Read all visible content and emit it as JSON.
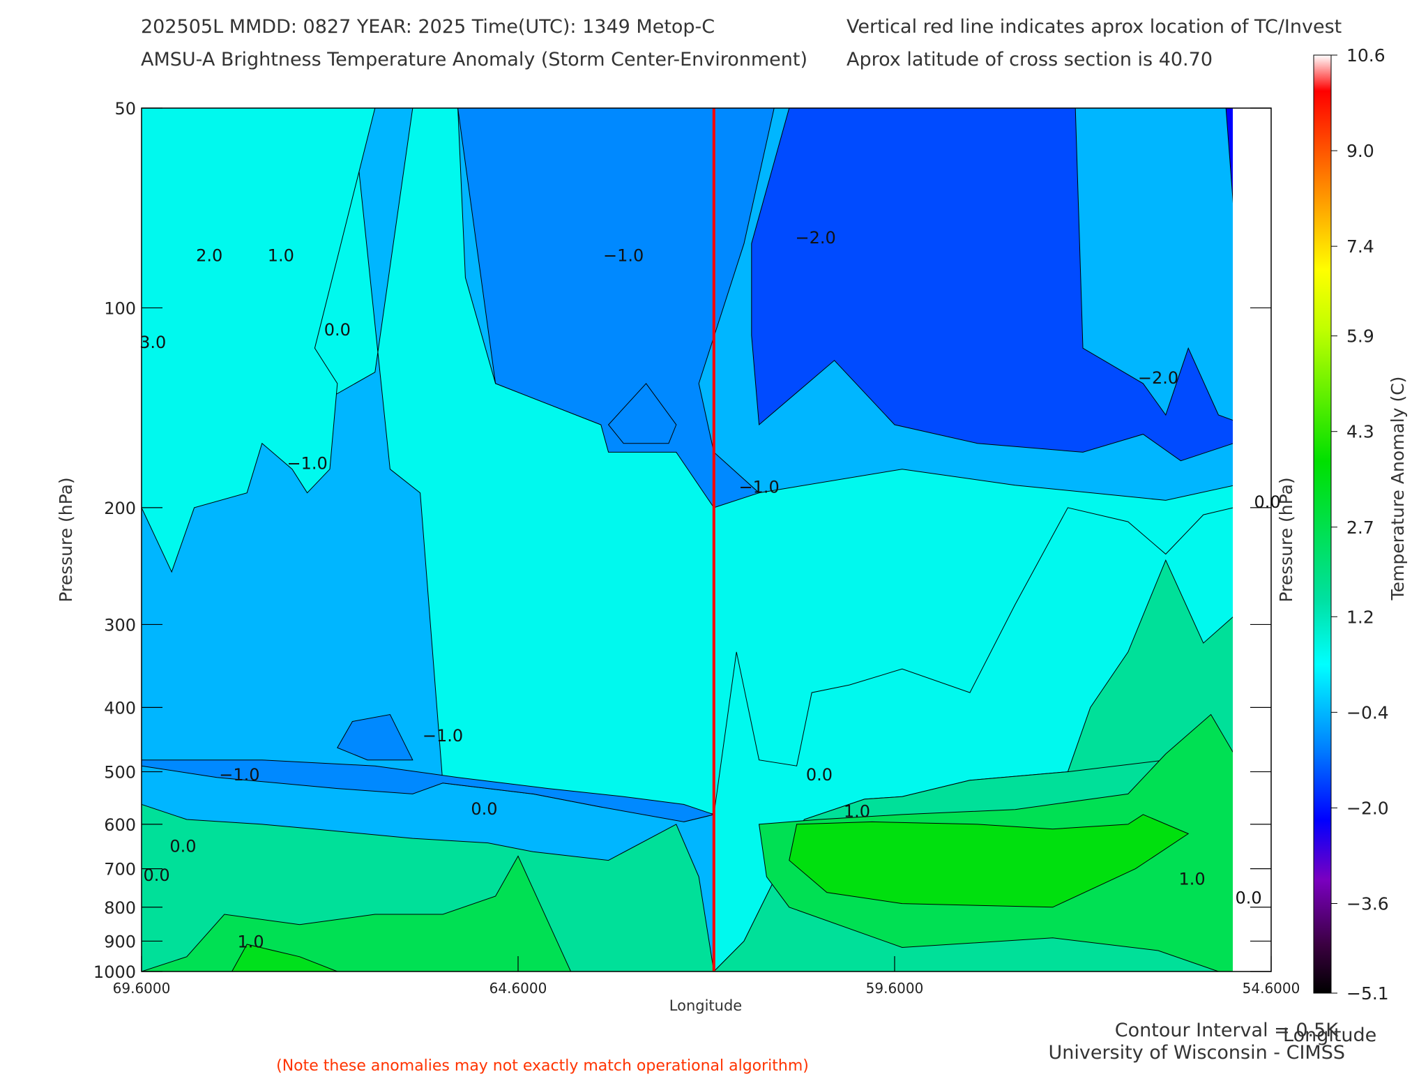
{
  "header": {
    "line1_left": "202505L  MMDD: 0827 YEAR: 2025 Time(UTC): 1349 Metop-C",
    "line2_left": "AMSU-A Brightness Temperature Anomaly (Storm Center-Environment)",
    "line1_right": "Vertical red line indicates aprox location of TC/Invest",
    "line2_right": "Aprox latitude of cross section is 40.70"
  },
  "footer": {
    "contour_interval": "Contour Interval = 0.5K",
    "institution": "University of Wisconsin - CIMSS",
    "note": "(Note these anomalies may not exactly match operational algorithm)",
    "extra_longitude": "Longitude"
  },
  "chart_data": {
    "type": "heatmap",
    "xlabel": "Longitude",
    "ylabel_left": "Pressure (hPa)",
    "ylabel_right": "Pressure (hPa)",
    "x_reversed": true,
    "xlim": [
      69.6,
      54.6
    ],
    "x_ticks": [
      "69.6000",
      "64.6000",
      "59.6000",
      "54.6000"
    ],
    "x_tick_values": [
      69.6,
      64.6,
      59.6,
      54.6
    ],
    "y_scale": "log",
    "ylim": [
      1000,
      50
    ],
    "y_ticks": [
      50,
      100,
      200,
      300,
      400,
      500,
      600,
      700,
      800,
      900,
      1000
    ],
    "storm_longitude": 62.0,
    "storm_line_color": "#ff0000",
    "colorbar": {
      "label": "Temperature Anomaly (C)",
      "min": -5.1,
      "max": 10.6,
      "ticks": [
        "10.6",
        "9.0",
        "7.4",
        "5.9",
        "4.3",
        "2.7",
        "1.2",
        "−0.4",
        "−2.0",
        "−3.6",
        "−5.1"
      ],
      "tick_values": [
        10.6,
        9.0,
        7.4,
        5.9,
        4.3,
        2.7,
        1.2,
        -0.4,
        -2.0,
        -3.6,
        -5.1
      ],
      "stops": [
        {
          "v": -5.1,
          "color": "#000000"
        },
        {
          "v": -4.3,
          "color": "#3a0040"
        },
        {
          "v": -3.2,
          "color": "#7a00c0"
        },
        {
          "v": -2.2,
          "color": "#0000ff"
        },
        {
          "v": -1.0,
          "color": "#0080ff"
        },
        {
          "v": 0.4,
          "color": "#00ffff"
        },
        {
          "v": 1.5,
          "color": "#00e0a0"
        },
        {
          "v": 3.8,
          "color": "#00e000"
        },
        {
          "v": 6.0,
          "color": "#c0ff00"
        },
        {
          "v": 7.0,
          "color": "#ffff00"
        },
        {
          "v": 8.5,
          "color": "#ff8000"
        },
        {
          "v": 10.0,
          "color": "#ff0000"
        },
        {
          "v": 10.6,
          "color": "#ffffff"
        }
      ]
    },
    "contour_labels": [
      {
        "text": "2.0",
        "lon": 68.7,
        "p": 85
      },
      {
        "text": "1.0",
        "lon": 67.75,
        "p": 85
      },
      {
        "text": "3.0",
        "lon": 69.45,
        "p": 115
      },
      {
        "text": "0.0",
        "lon": 67.0,
        "p": 110
      },
      {
        "text": "−1.0",
        "lon": 67.4,
        "p": 175
      },
      {
        "text": "−1.0",
        "lon": 63.2,
        "p": 85
      },
      {
        "text": "−2.0",
        "lon": 60.65,
        "p": 80
      },
      {
        "text": "−1.0",
        "lon": 61.4,
        "p": 190
      },
      {
        "text": "−2.0",
        "lon": 56.1,
        "p": 130
      },
      {
        "text": "0.0",
        "lon": 54.65,
        "p": 200
      },
      {
        "text": "−1.0",
        "lon": 65.6,
        "p": 450
      },
      {
        "text": "−1.0",
        "lon": 68.3,
        "p": 515
      },
      {
        "text": "0.0",
        "lon": 65.05,
        "p": 580
      },
      {
        "text": "0.0",
        "lon": 60.6,
        "p": 515
      },
      {
        "text": "1.0",
        "lon": 60.1,
        "p": 585
      },
      {
        "text": "0.0",
        "lon": 69.05,
        "p": 660
      },
      {
        "text": "0.0",
        "lon": 69.4,
        "p": 730
      },
      {
        "text": "1.0",
        "lon": 55.65,
        "p": 740
      },
      {
        "text": "0.0",
        "lon": 54.9,
        "p": 790
      },
      {
        "text": "1.0",
        "lon": 68.15,
        "p": 920
      }
    ],
    "regions": [
      {
        "value": -0.4,
        "polygon": [
          [
            69.6,
            50
          ],
          [
            54.6,
            50
          ],
          [
            54.6,
            1000
          ],
          [
            69.6,
            1000
          ]
        ]
      },
      {
        "value": 0.6,
        "polygon": [
          [
            69.6,
            50
          ],
          [
            66.8,
            50
          ],
          [
            66.3,
            175
          ],
          [
            65.9,
            190
          ],
          [
            65.6,
            520
          ],
          [
            64.4,
            540
          ],
          [
            63.5,
            565
          ],
          [
            62.0,
            580
          ],
          [
            62.4,
            595
          ],
          [
            61.0,
            535
          ],
          [
            59.4,
            515
          ],
          [
            57.0,
            500
          ],
          [
            55.7,
            480
          ],
          [
            54.6,
            460
          ],
          [
            54.6,
            180
          ],
          [
            56.0,
            195
          ],
          [
            58.0,
            185
          ],
          [
            59.5,
            175
          ],
          [
            62.0,
            195
          ],
          [
            62.5,
            165
          ],
          [
            63.5,
            150
          ],
          [
            64.9,
            130
          ],
          [
            65.3,
            90
          ],
          [
            65.4,
            50
          ],
          [
            66.0,
            50
          ],
          [
            66.5,
            125
          ],
          [
            67.5,
            145
          ],
          [
            68.6,
            170
          ],
          [
            69.6,
            200
          ],
          [
            69.6,
            1000
          ],
          [
            69.6,
            1000
          ]
        ]
      },
      {
        "value": 0.6,
        "polygon": [
          [
            69.6,
            200
          ],
          [
            69.2,
            250
          ],
          [
            68.9,
            200
          ],
          [
            68.2,
            190
          ],
          [
            68.0,
            160
          ],
          [
            67.6,
            175
          ],
          [
            67.4,
            190
          ],
          [
            67.1,
            175
          ],
          [
            67.0,
            130
          ],
          [
            67.3,
            115
          ],
          [
            66.5,
            50
          ],
          [
            69.6,
            50
          ]
        ]
      },
      {
        "value": 0.6,
        "polygon": [
          [
            62.0,
            580
          ],
          [
            61.7,
            330
          ],
          [
            61.4,
            480
          ],
          [
            60.9,
            490
          ],
          [
            60.7,
            380
          ],
          [
            60.2,
            370
          ],
          [
            59.5,
            350
          ],
          [
            58.6,
            380
          ],
          [
            58.0,
            280
          ],
          [
            57.3,
            200
          ],
          [
            56.5,
            210
          ],
          [
            56.0,
            235
          ],
          [
            55.5,
            205
          ],
          [
            55.1,
            200
          ],
          [
            54.6,
            200
          ],
          [
            54.6,
            1000
          ],
          [
            62.0,
            1000
          ]
        ]
      },
      {
        "value": 1.6,
        "polygon": [
          [
            69.6,
            1000
          ],
          [
            69.6,
            560
          ],
          [
            69.0,
            590
          ],
          [
            68.0,
            600
          ],
          [
            67.3,
            610
          ],
          [
            66.0,
            630
          ],
          [
            65.0,
            640
          ],
          [
            64.4,
            660
          ],
          [
            63.4,
            680
          ],
          [
            62.5,
            600
          ],
          [
            62.2,
            720
          ],
          [
            62.0,
            1000
          ]
        ]
      },
      {
        "value": 1.6,
        "polygon": [
          [
            62.0,
            1000
          ],
          [
            61.6,
            900
          ],
          [
            60.8,
            590
          ],
          [
            60.0,
            550
          ],
          [
            59.5,
            545
          ],
          [
            58.6,
            515
          ],
          [
            57.3,
            500
          ],
          [
            57.0,
            400
          ],
          [
            56.5,
            330
          ],
          [
            56.0,
            240
          ],
          [
            55.5,
            320
          ],
          [
            55.0,
            285
          ],
          [
            54.6,
            205
          ],
          [
            54.6,
            1000
          ]
        ]
      },
      {
        "value": 1.6,
        "polygon": [
          [
            62.0,
            1000
          ],
          [
            61.6,
            900
          ],
          [
            60.8,
            590
          ],
          [
            60.0,
            550
          ],
          [
            59.5,
            545
          ],
          [
            58.6,
            515
          ],
          [
            57.3,
            500
          ],
          [
            56.0,
            480
          ],
          [
            54.6,
            460
          ],
          [
            54.6,
            1000
          ]
        ]
      },
      {
        "value": 2.6,
        "polygon": [
          [
            69.6,
            1000
          ],
          [
            69.0,
            950
          ],
          [
            68.5,
            820
          ],
          [
            67.5,
            850
          ],
          [
            66.5,
            820
          ],
          [
            65.6,
            820
          ],
          [
            64.9,
            770
          ],
          [
            64.6,
            670
          ],
          [
            63.9,
            1000
          ]
        ]
      },
      {
        "value": 2.6,
        "polygon": [
          [
            61.4,
            600
          ],
          [
            60.6,
            590
          ],
          [
            59.5,
            580
          ],
          [
            58.0,
            570
          ],
          [
            56.5,
            540
          ],
          [
            56.0,
            470
          ],
          [
            55.4,
            410
          ],
          [
            55.0,
            490
          ],
          [
            54.8,
            560
          ],
          [
            54.6,
            1000
          ],
          [
            55.3,
            1000
          ],
          [
            56.1,
            930
          ],
          [
            57.5,
            890
          ],
          [
            59.5,
            920
          ],
          [
            61.0,
            800
          ],
          [
            61.3,
            720
          ]
        ]
      },
      {
        "value": 3.4,
        "polygon": [
          [
            68.4,
            1000
          ],
          [
            68.2,
            910
          ],
          [
            67.5,
            950
          ],
          [
            67.0,
            1000
          ]
        ]
      },
      {
        "value": 3.6,
        "polygon": [
          [
            60.9,
            600
          ],
          [
            59.9,
            595
          ],
          [
            58.5,
            600
          ],
          [
            57.5,
            610
          ],
          [
            56.5,
            600
          ],
          [
            56.3,
            580
          ],
          [
            55.7,
            620
          ],
          [
            56.4,
            700
          ],
          [
            57.5,
            800
          ],
          [
            59.5,
            790
          ],
          [
            60.5,
            760
          ],
          [
            61.0,
            680
          ]
        ]
      },
      {
        "value": -1.5,
        "polygon": [
          [
            61.0,
            50
          ],
          [
            57.2,
            50
          ],
          [
            57.1,
            115
          ],
          [
            56.3,
            130
          ],
          [
            56.0,
            145
          ],
          [
            55.7,
            115
          ],
          [
            55.3,
            145
          ],
          [
            54.6,
            155
          ],
          [
            54.6,
            170
          ],
          [
            55.1,
            160
          ],
          [
            55.8,
            170
          ],
          [
            56.3,
            155
          ],
          [
            57.1,
            165
          ],
          [
            58.5,
            160
          ],
          [
            59.6,
            150
          ],
          [
            60.4,
            120
          ],
          [
            61.4,
            150
          ],
          [
            61.5,
            110
          ],
          [
            61.5,
            80
          ]
        ]
      },
      {
        "value": -2.2,
        "polygon": [
          [
            55.5,
            50
          ],
          [
            54.6,
            50
          ],
          [
            54.6,
            110
          ],
          [
            55.0,
            100
          ],
          [
            55.2,
            50
          ]
        ]
      },
      {
        "value": -0.9,
        "polygon": [
          [
            65.4,
            50
          ],
          [
            64.9,
            130
          ],
          [
            63.5,
            150
          ],
          [
            63.4,
            165
          ],
          [
            62.5,
            165
          ],
          [
            62.0,
            200
          ],
          [
            61.4,
            190
          ],
          [
            62.0,
            165
          ],
          [
            62.2,
            130
          ],
          [
            61.6,
            80
          ],
          [
            61.2,
            50
          ]
        ]
      },
      {
        "value": -0.9,
        "polygon": [
          [
            63.4,
            150
          ],
          [
            62.9,
            130
          ],
          [
            62.5,
            150
          ],
          [
            62.6,
            160
          ],
          [
            63.2,
            160
          ]
        ]
      },
      {
        "value": -0.9,
        "polygon": [
          [
            66.8,
            420
          ],
          [
            66.3,
            410
          ],
          [
            66.0,
            480
          ],
          [
            66.6,
            480
          ],
          [
            67.0,
            460
          ]
        ]
      },
      {
        "value": -0.9,
        "polygon": [
          [
            69.6,
            490
          ],
          [
            68.6,
            510
          ],
          [
            67.0,
            530
          ],
          [
            66.0,
            540
          ],
          [
            65.6,
            520
          ],
          [
            64.4,
            540
          ],
          [
            63.5,
            565
          ],
          [
            62.4,
            595
          ],
          [
            62.0,
            580
          ],
          [
            62.4,
            560
          ],
          [
            63.2,
            545
          ],
          [
            64.2,
            530
          ],
          [
            65.4,
            510
          ],
          [
            66.5,
            490
          ],
          [
            68.0,
            480
          ],
          [
            69.6,
            480
          ]
        ]
      }
    ]
  }
}
